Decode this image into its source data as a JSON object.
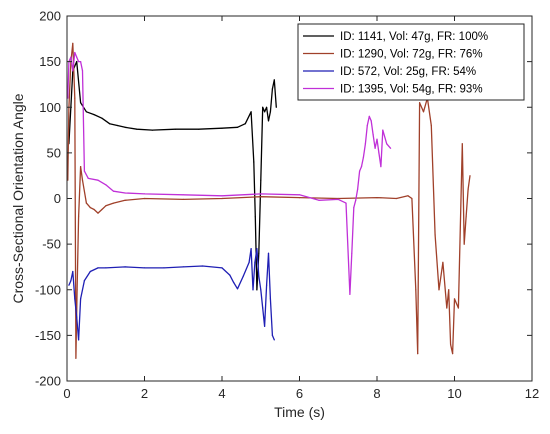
{
  "chart_data": {
    "type": "line",
    "title": "",
    "xlabel": "Time (s)",
    "ylabel": "Cross-Sectional Orientation Angle",
    "xlim": [
      0,
      12
    ],
    "ylim": [
      -200,
      200
    ],
    "xticks": [
      0,
      2,
      4,
      6,
      8,
      10,
      12
    ],
    "yticks": [
      -200,
      -150,
      -100,
      -50,
      0,
      50,
      100,
      150,
      200
    ],
    "grid": false,
    "legend_position": "top-right",
    "series": [
      {
        "name": "ID: 1141, Vol: 47g, FR: 100%",
        "color": "#000000",
        "points": [
          [
            0.05,
            60
          ],
          [
            0.15,
            140
          ],
          [
            0.25,
            150
          ],
          [
            0.35,
            105
          ],
          [
            0.5,
            95
          ],
          [
            0.7,
            92
          ],
          [
            0.9,
            88
          ],
          [
            1.1,
            82
          ],
          [
            1.3,
            80
          ],
          [
            1.5,
            78
          ],
          [
            1.8,
            76
          ],
          [
            2.2,
            75
          ],
          [
            2.8,
            76
          ],
          [
            3.4,
            76
          ],
          [
            4.0,
            77
          ],
          [
            4.4,
            78
          ],
          [
            4.6,
            82
          ],
          [
            4.75,
            95
          ],
          [
            4.82,
            40
          ],
          [
            4.86,
            -20
          ],
          [
            4.9,
            -100
          ],
          [
            4.95,
            -60
          ],
          [
            5.0,
            20
          ],
          [
            5.05,
            100
          ],
          [
            5.1,
            95
          ],
          [
            5.15,
            100
          ],
          [
            5.2,
            85
          ],
          [
            5.25,
            95
          ],
          [
            5.3,
            120
          ],
          [
            5.35,
            130
          ],
          [
            5.4,
            100
          ]
        ]
      },
      {
        "name": "ID: 1290, Vol: 72g, FR: 76%",
        "color": "#a0402a",
        "points": [
          [
            0.02,
            20
          ],
          [
            0.05,
            100
          ],
          [
            0.1,
            150
          ],
          [
            0.15,
            170
          ],
          [
            0.2,
            110
          ],
          [
            0.23,
            -175
          ],
          [
            0.26,
            -100
          ],
          [
            0.3,
            -20
          ],
          [
            0.35,
            35
          ],
          [
            0.4,
            20
          ],
          [
            0.5,
            -5
          ],
          [
            0.6,
            -10
          ],
          [
            0.7,
            -12
          ],
          [
            0.8,
            -16
          ],
          [
            0.9,
            -12
          ],
          [
            1.0,
            -8
          ],
          [
            1.2,
            -5
          ],
          [
            1.5,
            -2
          ],
          [
            2.0,
            0
          ],
          [
            3.0,
            -1
          ],
          [
            4.0,
            0
          ],
          [
            5.0,
            2
          ],
          [
            6.0,
            1
          ],
          [
            7.0,
            0
          ],
          [
            8.0,
            1
          ],
          [
            8.5,
            0
          ],
          [
            8.8,
            3
          ],
          [
            8.9,
            0
          ],
          [
            9.0,
            -100
          ],
          [
            9.05,
            -170
          ],
          [
            9.1,
            105
          ],
          [
            9.2,
            95
          ],
          [
            9.3,
            110
          ],
          [
            9.4,
            80
          ],
          [
            9.5,
            -40
          ],
          [
            9.6,
            -100
          ],
          [
            9.7,
            -70
          ],
          [
            9.8,
            -120
          ],
          [
            9.85,
            -100
          ],
          [
            9.9,
            -160
          ],
          [
            9.95,
            -170
          ],
          [
            10.0,
            -110
          ],
          [
            10.1,
            -120
          ],
          [
            10.2,
            60
          ],
          [
            10.25,
            -50
          ],
          [
            10.3,
            -20
          ],
          [
            10.35,
            10
          ],
          [
            10.4,
            25
          ]
        ]
      },
      {
        "name": "ID: 572, Vol: 25g, FR: 54%",
        "color": "#1f1fb4",
        "points": [
          [
            0.05,
            -95
          ],
          [
            0.1,
            -90
          ],
          [
            0.15,
            -80
          ],
          [
            0.2,
            -110
          ],
          [
            0.25,
            -130
          ],
          [
            0.3,
            -155
          ],
          [
            0.35,
            -110
          ],
          [
            0.45,
            -90
          ],
          [
            0.6,
            -80
          ],
          [
            0.8,
            -76
          ],
          [
            1.0,
            -76
          ],
          [
            1.5,
            -75
          ],
          [
            2.0,
            -76
          ],
          [
            2.5,
            -76
          ],
          [
            3.0,
            -75
          ],
          [
            3.5,
            -74
          ],
          [
            4.0,
            -76
          ],
          [
            4.2,
            -84
          ],
          [
            4.3,
            -92
          ],
          [
            4.4,
            -99
          ],
          [
            4.55,
            -85
          ],
          [
            4.7,
            -70
          ],
          [
            4.75,
            -55
          ],
          [
            4.8,
            -100
          ],
          [
            4.85,
            -70
          ],
          [
            4.9,
            -55
          ],
          [
            4.95,
            -85
          ],
          [
            5.0,
            -100
          ],
          [
            5.05,
            -120
          ],
          [
            5.1,
            -140
          ],
          [
            5.15,
            -95
          ],
          [
            5.2,
            -60
          ],
          [
            5.25,
            -110
          ],
          [
            5.3,
            -150
          ],
          [
            5.35,
            -155
          ]
        ]
      },
      {
        "name": "ID: 1395, Vol: 54g, FR: 93%",
        "color": "#c030d8",
        "points": [
          [
            0.02,
            110
          ],
          [
            0.05,
            150
          ],
          [
            0.1,
            155
          ],
          [
            0.15,
            140
          ],
          [
            0.2,
            160
          ],
          [
            0.25,
            155
          ],
          [
            0.3,
            150
          ],
          [
            0.35,
            150
          ],
          [
            0.4,
            140
          ],
          [
            0.45,
            30
          ],
          [
            0.55,
            22
          ],
          [
            0.8,
            20
          ],
          [
            1.0,
            15
          ],
          [
            1.2,
            8
          ],
          [
            1.5,
            6
          ],
          [
            2.0,
            5
          ],
          [
            3.0,
            4
          ],
          [
            4.0,
            3
          ],
          [
            5.0,
            5
          ],
          [
            6.0,
            4
          ],
          [
            6.5,
            -2
          ],
          [
            7.0,
            -1
          ],
          [
            7.2,
            -5
          ],
          [
            7.3,
            -105
          ],
          [
            7.35,
            -60
          ],
          [
            7.4,
            -10
          ],
          [
            7.45,
            -2
          ],
          [
            7.5,
            10
          ],
          [
            7.55,
            30
          ],
          [
            7.6,
            35
          ],
          [
            7.65,
            45
          ],
          [
            7.7,
            60
          ],
          [
            7.75,
            80
          ],
          [
            7.8,
            90
          ],
          [
            7.85,
            85
          ],
          [
            7.9,
            70
          ],
          [
            7.95,
            55
          ],
          [
            8.0,
            65
          ],
          [
            8.05,
            50
          ],
          [
            8.1,
            35
          ],
          [
            8.15,
            75
          ],
          [
            8.25,
            60
          ],
          [
            8.35,
            55
          ]
        ]
      }
    ]
  }
}
